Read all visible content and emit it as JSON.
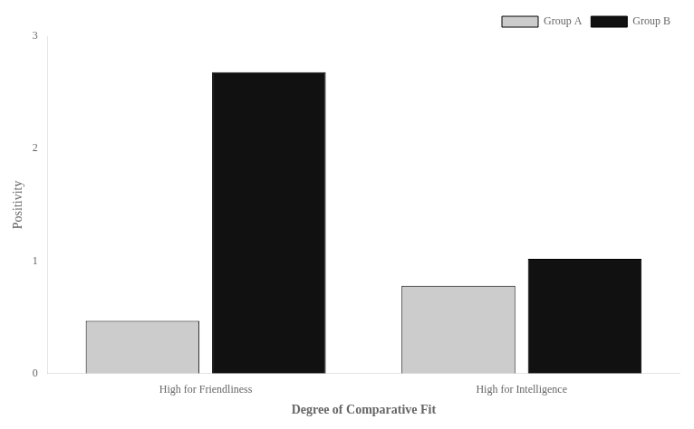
{
  "chart_data": {
    "type": "bar",
    "categories": [
      "High for Friendliness",
      "High for Intelligence"
    ],
    "series": [
      {
        "name": "Group A",
        "color": "#cccccc",
        "values": [
          0.47,
          0.78
        ]
      },
      {
        "name": "Group B",
        "color": "#111111",
        "values": [
          2.68,
          1.02
        ]
      }
    ],
    "xlabel": "Degree of Comparative Fit",
    "ylabel": "Positivity",
    "ylim": [
      0,
      3
    ],
    "yticks": [
      0,
      1,
      2,
      3
    ],
    "grid": false,
    "legend": "upper right"
  }
}
